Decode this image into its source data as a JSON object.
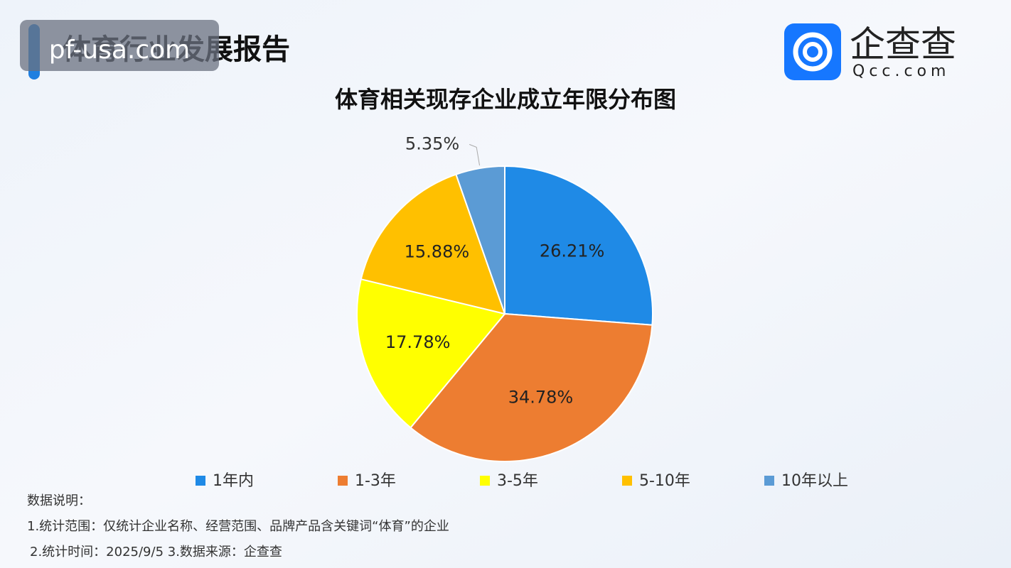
{
  "header": {
    "title": "体育行业发展报告",
    "watermark": "pf-usa.com",
    "logo": {
      "name": "企查查",
      "domain": "Qcc.com"
    }
  },
  "chart_data": {
    "type": "pie",
    "title": "体育相关现存企业成立年限分布图",
    "categories": [
      "1年内",
      "1-3年",
      "3-5年",
      "5-10年",
      "10年以上"
    ],
    "values": [
      26.21,
      34.78,
      17.78,
      15.88,
      5.35
    ],
    "value_labels": [
      "26.21%",
      "34.78%",
      "17.78%",
      "15.88%",
      "5.35%"
    ],
    "colors": [
      "#1f8ae6",
      "#ed7d31",
      "#ffff00",
      "#ffc000",
      "#5b9bd5"
    ]
  },
  "notes": [
    "数据说明：",
    "1.统计范围：仅统计企业名称、经营范围、品牌产品含关键词“体育”的企业",
    "2.统计时间：2025/9/5 3.数据来源：企查查"
  ]
}
